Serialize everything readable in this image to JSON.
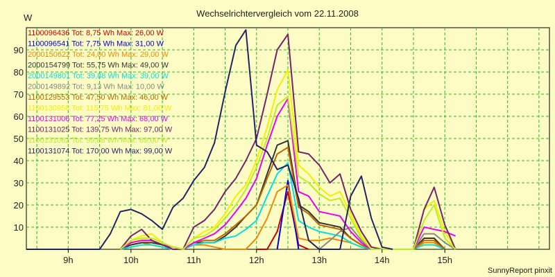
{
  "chart_data": {
    "type": "line",
    "title": "Wechselrichtervergleich vom 22.11.2008",
    "ylabel": "W",
    "ylim": [
      0,
      100
    ],
    "yticks": [
      10,
      20,
      30,
      40,
      50,
      60,
      70,
      80,
      90
    ],
    "x_start_hour": 8.333,
    "x_end_hour": 16.667,
    "xtick_labels": [
      "9h",
      "10h",
      "11h",
      "12h",
      "13h",
      "14h",
      "15h"
    ],
    "xtick_hours": [
      9,
      10,
      11,
      12,
      13,
      14,
      15
    ],
    "grid": true,
    "legend_position": "top-left",
    "footer": "SunnyReport pinxit",
    "series": [
      {
        "id": "1100096436",
        "stats": "Tot: 8,75 Wh Max: 26,00 W",
        "color": "#cc0000",
        "points": [
          [
            12,
            0
          ],
          [
            12.17,
            0
          ],
          [
            12.33,
            8
          ],
          [
            12.5,
            26
          ],
          [
            12.67,
            2
          ],
          [
            12.83,
            0
          ]
        ]
      },
      {
        "id": "1100096541",
        "stats": "Tot: 7,75 Wh Max: 31,00 W",
        "color": "#0000dd",
        "points": [
          [
            12.33,
            0
          ],
          [
            12.5,
            31
          ],
          [
            12.67,
            0
          ]
        ]
      },
      {
        "id": "2000150622",
        "stats": "Tot: 24,00 Wh Max: 29,00 W",
        "color": "#ee8800",
        "points": [
          [
            9.83,
            0
          ],
          [
            10,
            2
          ],
          [
            10.17,
            3
          ],
          [
            10.33,
            2
          ],
          [
            10.5,
            1
          ],
          [
            10.67,
            0
          ],
          [
            10.83,
            0
          ],
          [
            11,
            2
          ],
          [
            11.17,
            2
          ],
          [
            11.33,
            1
          ],
          [
            11.5,
            0
          ],
          [
            11.67,
            0
          ],
          [
            11.83,
            0
          ],
          [
            12,
            5
          ],
          [
            12.17,
            14
          ],
          [
            12.33,
            26
          ],
          [
            12.5,
            29
          ],
          [
            12.67,
            5
          ],
          [
            12.83,
            4
          ],
          [
            13,
            4
          ],
          [
            13.17,
            5
          ],
          [
            13.33,
            4
          ],
          [
            13.5,
            3
          ],
          [
            13.67,
            1
          ],
          [
            13.83,
            0
          ],
          [
            14.5,
            0
          ],
          [
            14.67,
            3
          ],
          [
            14.83,
            3
          ],
          [
            15,
            0
          ]
        ]
      },
      {
        "id": "2000154799",
        "stats": "Tot: 55,75 Wh Max: 49,00 W",
        "color": "#333333",
        "points": [
          [
            9.83,
            0
          ],
          [
            10,
            2
          ],
          [
            10.17,
            3
          ],
          [
            10.33,
            3
          ],
          [
            10.5,
            2
          ],
          [
            10.67,
            1
          ],
          [
            10.83,
            0
          ],
          [
            11,
            3
          ],
          [
            11.17,
            3
          ],
          [
            11.33,
            3
          ],
          [
            11.5,
            6
          ],
          [
            11.67,
            10
          ],
          [
            11.83,
            15
          ],
          [
            12,
            20
          ],
          [
            12.17,
            34
          ],
          [
            12.33,
            47
          ],
          [
            12.5,
            49
          ],
          [
            12.67,
            20
          ],
          [
            12.83,
            17
          ],
          [
            13,
            12
          ],
          [
            13.17,
            11
          ],
          [
            13.33,
            10
          ],
          [
            13.5,
            5
          ],
          [
            13.67,
            2
          ],
          [
            13.83,
            0
          ],
          [
            14.5,
            0
          ],
          [
            14.67,
            5
          ],
          [
            14.83,
            5
          ],
          [
            15,
            0
          ]
        ]
      },
      {
        "id": "2000149801",
        "stats": "Tot: 39,88 Wh Max: 39,00 W",
        "color": "#00e0e0",
        "points": [
          [
            9.83,
            0
          ],
          [
            10,
            1
          ],
          [
            10.17,
            2
          ],
          [
            10.33,
            2
          ],
          [
            10.5,
            1
          ],
          [
            10.67,
            0
          ],
          [
            10.83,
            0
          ],
          [
            11,
            2
          ],
          [
            11.17,
            3
          ],
          [
            11.33,
            3
          ],
          [
            11.5,
            5
          ],
          [
            11.67,
            6
          ],
          [
            11.83,
            9
          ],
          [
            12,
            13
          ],
          [
            12.17,
            24
          ],
          [
            12.33,
            34
          ],
          [
            12.5,
            39
          ],
          [
            12.67,
            13
          ],
          [
            12.83,
            10
          ],
          [
            13,
            8
          ],
          [
            13.17,
            7
          ],
          [
            13.33,
            6
          ],
          [
            13.5,
            3
          ],
          [
            13.67,
            1
          ],
          [
            13.83,
            0
          ],
          [
            14.5,
            0
          ],
          [
            14.67,
            2
          ],
          [
            14.83,
            2
          ],
          [
            15,
            0
          ]
        ]
      },
      {
        "id": "2000149892",
        "stats": "Tot: 9,13 Wh Max: 10,00 W",
        "color": "#888888",
        "points": [
          [
            13,
            0
          ],
          [
            13.17,
            4
          ],
          [
            13.33,
            8
          ],
          [
            13.5,
            10
          ],
          [
            13.67,
            4
          ],
          [
            13.83,
            0
          ],
          [
            14.5,
            0
          ],
          [
            14.67,
            7
          ],
          [
            14.83,
            7
          ],
          [
            15,
            3
          ],
          [
            15.17,
            0
          ]
        ]
      },
      {
        "id": "1100129553",
        "stats": "Tot: 47,50 Wh Max: 46,00 W",
        "color": "#bb6600",
        "points": [
          [
            9.83,
            0
          ],
          [
            10,
            3
          ],
          [
            10.17,
            4
          ],
          [
            10.33,
            4
          ],
          [
            10.5,
            2
          ],
          [
            10.67,
            1
          ],
          [
            10.83,
            0
          ],
          [
            11,
            3
          ],
          [
            11.17,
            4
          ],
          [
            11.33,
            4
          ],
          [
            11.5,
            7
          ],
          [
            11.67,
            11
          ],
          [
            11.83,
            15
          ],
          [
            12,
            20
          ],
          [
            12.17,
            32
          ],
          [
            12.33,
            43
          ],
          [
            12.5,
            46
          ],
          [
            12.67,
            19
          ],
          [
            12.83,
            16
          ],
          [
            13,
            11
          ],
          [
            13.17,
            10
          ],
          [
            13.33,
            9
          ],
          [
            13.5,
            5
          ],
          [
            13.67,
            2
          ],
          [
            13.83,
            0
          ],
          [
            14.5,
            0
          ],
          [
            14.67,
            4
          ],
          [
            14.83,
            4
          ],
          [
            15,
            0
          ]
        ]
      },
      {
        "id": "1100130958",
        "stats": "Tot: 115,75 Wh Max: 81,00 W",
        "color": "#f0f000",
        "points": [
          [
            9.83,
            0
          ],
          [
            10,
            4
          ],
          [
            10.17,
            6
          ],
          [
            10.33,
            7
          ],
          [
            10.5,
            3
          ],
          [
            10.67,
            1
          ],
          [
            10.83,
            0
          ],
          [
            11,
            5
          ],
          [
            11.17,
            8
          ],
          [
            11.33,
            10
          ],
          [
            11.5,
            16
          ],
          [
            11.67,
            24
          ],
          [
            11.83,
            29
          ],
          [
            12,
            40
          ],
          [
            12.17,
            55
          ],
          [
            12.33,
            72
          ],
          [
            12.5,
            81
          ],
          [
            12.67,
            38
          ],
          [
            12.83,
            34
          ],
          [
            13,
            28
          ],
          [
            13.17,
            24
          ],
          [
            13.33,
            26
          ],
          [
            13.5,
            16
          ],
          [
            13.67,
            6
          ],
          [
            13.83,
            1
          ],
          [
            14,
            0
          ],
          [
            14.5,
            0
          ],
          [
            14.67,
            18
          ],
          [
            14.83,
            22
          ],
          [
            15,
            8
          ],
          [
            15.17,
            0
          ]
        ]
      },
      {
        "id": "1100131006",
        "stats": "Tot: 77,25 Wh Max: 68,00 W",
        "color": "#ee00ee",
        "points": [
          [
            9.83,
            0
          ],
          [
            10,
            3
          ],
          [
            10.17,
            4
          ],
          [
            10.33,
            4
          ],
          [
            10.5,
            2
          ],
          [
            10.67,
            1
          ],
          [
            10.83,
            0
          ],
          [
            11,
            3
          ],
          [
            11.17,
            5
          ],
          [
            11.33,
            7
          ],
          [
            11.5,
            11
          ],
          [
            11.67,
            17
          ],
          [
            11.83,
            23
          ],
          [
            12,
            32
          ],
          [
            12.17,
            47
          ],
          [
            12.33,
            60
          ],
          [
            12.5,
            68
          ],
          [
            12.67,
            26
          ],
          [
            12.83,
            24
          ],
          [
            13,
            17
          ],
          [
            13.17,
            16
          ],
          [
            13.33,
            15
          ],
          [
            13.5,
            8
          ],
          [
            13.67,
            3
          ],
          [
            13.83,
            0
          ],
          [
            14.5,
            0
          ],
          [
            14.67,
            10
          ],
          [
            14.83,
            9
          ],
          [
            15,
            8
          ],
          [
            15.17,
            6
          ]
        ]
      },
      {
        "id": "1100131025",
        "stats": "Tot: 139,75 Wh Max: 97,00 W",
        "color": "#772266",
        "points": [
          [
            9.83,
            0
          ],
          [
            10,
            6
          ],
          [
            10.17,
            9
          ],
          [
            10.33,
            4
          ],
          [
            10.5,
            2
          ],
          [
            10.67,
            0
          ],
          [
            10.83,
            0
          ],
          [
            11,
            10
          ],
          [
            11.17,
            13
          ],
          [
            11.33,
            18
          ],
          [
            11.5,
            26
          ],
          [
            11.67,
            32
          ],
          [
            11.83,
            40
          ],
          [
            12,
            50
          ],
          [
            12.17,
            70
          ],
          [
            12.33,
            90
          ],
          [
            12.5,
            97
          ],
          [
            12.67,
            44
          ],
          [
            12.83,
            43
          ],
          [
            13,
            38
          ],
          [
            13.17,
            30
          ],
          [
            13.33,
            34
          ],
          [
            13.5,
            18
          ],
          [
            13.67,
            8
          ],
          [
            13.83,
            1
          ],
          [
            14,
            0
          ],
          [
            14.5,
            0
          ],
          [
            14.67,
            18
          ],
          [
            14.83,
            28
          ],
          [
            15,
            11
          ],
          [
            15.17,
            0
          ]
        ]
      },
      {
        "id": "1100131062",
        "stats": "Tot: 99,88 Wh Max: 69,00 W",
        "color": "#bbee22",
        "points": [
          [
            9.83,
            0
          ],
          [
            10,
            4
          ],
          [
            10.17,
            5
          ],
          [
            10.33,
            5
          ],
          [
            10.5,
            3
          ],
          [
            10.67,
            1
          ],
          [
            10.83,
            0
          ],
          [
            11,
            5
          ],
          [
            11.17,
            6
          ],
          [
            11.33,
            9
          ],
          [
            11.5,
            14
          ],
          [
            11.67,
            20
          ],
          [
            11.83,
            27
          ],
          [
            12,
            37
          ],
          [
            12.17,
            50
          ],
          [
            12.33,
            65
          ],
          [
            12.5,
            69
          ],
          [
            12.67,
            33
          ],
          [
            12.83,
            30
          ],
          [
            13,
            25
          ],
          [
            13.17,
            22
          ],
          [
            13.33,
            23
          ],
          [
            13.5,
            14
          ],
          [
            13.67,
            5
          ],
          [
            13.83,
            0
          ],
          [
            14.5,
            0
          ],
          [
            14.67,
            13
          ],
          [
            14.83,
            20
          ],
          [
            15,
            5
          ],
          [
            15.17,
            0
          ]
        ]
      },
      {
        "id": "1100131074",
        "stats": "Tot: 170,00 Wh Max: 99,00 W",
        "color": "#222266",
        "points": [
          [
            8.33,
            0
          ],
          [
            9.33,
            0
          ],
          [
            9.5,
            0
          ],
          [
            9.67,
            7
          ],
          [
            9.83,
            17
          ],
          [
            10,
            18
          ],
          [
            10.17,
            16
          ],
          [
            10.33,
            13
          ],
          [
            10.5,
            9
          ],
          [
            10.67,
            19
          ],
          [
            10.83,
            23
          ],
          [
            11,
            31
          ],
          [
            11.17,
            37
          ],
          [
            11.33,
            48
          ],
          [
            11.5,
            71
          ],
          [
            11.67,
            92
          ],
          [
            11.83,
            99
          ],
          [
            12,
            47
          ],
          [
            12.17,
            44
          ],
          [
            12.33,
            36
          ],
          [
            12.5,
            38
          ],
          [
            12.67,
            23
          ],
          [
            12.83,
            4
          ],
          [
            13,
            0
          ],
          [
            13.17,
            0
          ],
          [
            13.33,
            0
          ],
          [
            13.5,
            24
          ],
          [
            13.67,
            33
          ],
          [
            13.83,
            14
          ],
          [
            14,
            1
          ],
          [
            14.17,
            0
          ]
        ]
      }
    ]
  }
}
